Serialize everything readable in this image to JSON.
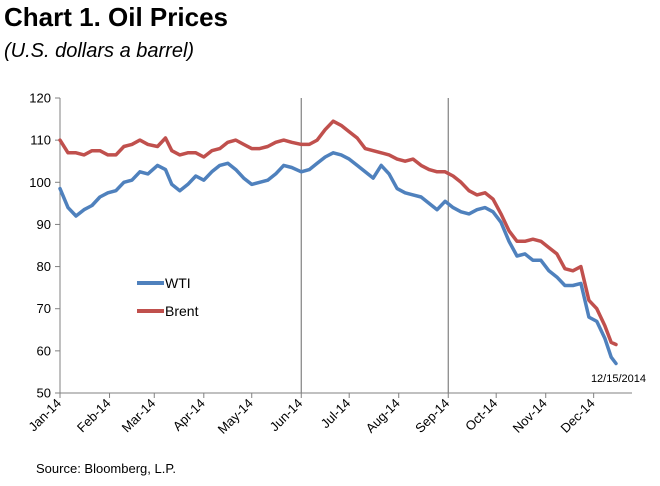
{
  "chart_data": {
    "type": "line",
    "title": "Chart 1. Oil Prices",
    "subtitle": "(U.S. dollars a barrel)",
    "source": "Source: Bloomberg, L.P.",
    "annotation": "12/15/2014",
    "ylim": [
      50,
      120
    ],
    "yticks": [
      50,
      60,
      70,
      80,
      90,
      100,
      110,
      120
    ],
    "xlim": [
      "2014-01-01",
      "2014-12-25"
    ],
    "xticks": [
      {
        "date": "2014-01-01",
        "label": "Jan-14"
      },
      {
        "date": "2014-02-01",
        "label": "Feb-14"
      },
      {
        "date": "2014-03-01",
        "label": "Mar-14"
      },
      {
        "date": "2014-04-01",
        "label": "Apr-14"
      },
      {
        "date": "2014-05-01",
        "label": "May-14"
      },
      {
        "date": "2014-06-01",
        "label": "Jun-14"
      },
      {
        "date": "2014-07-01",
        "label": "Jul-14"
      },
      {
        "date": "2014-08-01",
        "label": "Aug-14"
      },
      {
        "date": "2014-09-01",
        "label": "Sep-14"
      },
      {
        "date": "2014-10-01",
        "label": "Oct-14"
      },
      {
        "date": "2014-11-01",
        "label": "Nov-14"
      },
      {
        "date": "2014-12-01",
        "label": "Dec-14"
      }
    ],
    "reference_lines": [
      "2014-06-01",
      "2014-09-01"
    ],
    "grid": false,
    "legend_position": "left-center",
    "series": [
      {
        "name": "WTI",
        "color": "#4F81BD",
        "points": [
          [
            "2014-01-01",
            98.5
          ],
          [
            "2014-01-06",
            94
          ],
          [
            "2014-01-11",
            92
          ],
          [
            "2014-01-16",
            93.5
          ],
          [
            "2014-01-21",
            94.5
          ],
          [
            "2014-01-26",
            96.5
          ],
          [
            "2014-01-31",
            97.5
          ],
          [
            "2014-02-05",
            98
          ],
          [
            "2014-02-10",
            100
          ],
          [
            "2014-02-15",
            100.5
          ],
          [
            "2014-02-20",
            102.5
          ],
          [
            "2014-02-25",
            102
          ],
          [
            "2014-03-03",
            104
          ],
          [
            "2014-03-08",
            103
          ],
          [
            "2014-03-12",
            99.5
          ],
          [
            "2014-03-17",
            98
          ],
          [
            "2014-03-22",
            99.5
          ],
          [
            "2014-03-27",
            101.5
          ],
          [
            "2014-04-01",
            100.5
          ],
          [
            "2014-04-06",
            102.5
          ],
          [
            "2014-04-11",
            104
          ],
          [
            "2014-04-16",
            104.5
          ],
          [
            "2014-04-21",
            103
          ],
          [
            "2014-04-26",
            101
          ],
          [
            "2014-05-01",
            99.5
          ],
          [
            "2014-05-06",
            100
          ],
          [
            "2014-05-11",
            100.5
          ],
          [
            "2014-05-16",
            102
          ],
          [
            "2014-05-21",
            104
          ],
          [
            "2014-05-26",
            103.5
          ],
          [
            "2014-06-01",
            102.5
          ],
          [
            "2014-06-06",
            103
          ],
          [
            "2014-06-11",
            104.5
          ],
          [
            "2014-06-16",
            106
          ],
          [
            "2014-06-21",
            107
          ],
          [
            "2014-06-26",
            106.5
          ],
          [
            "2014-07-01",
            105.5
          ],
          [
            "2014-07-06",
            104
          ],
          [
            "2014-07-11",
            102.5
          ],
          [
            "2014-07-16",
            101
          ],
          [
            "2014-07-21",
            104
          ],
          [
            "2014-07-26",
            102
          ],
          [
            "2014-07-31",
            98.5
          ],
          [
            "2014-08-05",
            97.5
          ],
          [
            "2014-08-10",
            97
          ],
          [
            "2014-08-15",
            96.5
          ],
          [
            "2014-08-20",
            95
          ],
          [
            "2014-08-25",
            93.5
          ],
          [
            "2014-08-30",
            95.5
          ],
          [
            "2014-09-04",
            94
          ],
          [
            "2014-09-09",
            93
          ],
          [
            "2014-09-14",
            92.5
          ],
          [
            "2014-09-19",
            93.5
          ],
          [
            "2014-09-24",
            94
          ],
          [
            "2014-09-29",
            93
          ],
          [
            "2014-10-04",
            90.5
          ],
          [
            "2014-10-09",
            86
          ],
          [
            "2014-10-14",
            82.5
          ],
          [
            "2014-10-19",
            83
          ],
          [
            "2014-10-24",
            81.5
          ],
          [
            "2014-10-29",
            81.5
          ],
          [
            "2014-11-03",
            79
          ],
          [
            "2014-11-08",
            77.5
          ],
          [
            "2014-11-13",
            75.5
          ],
          [
            "2014-11-18",
            75.5
          ],
          [
            "2014-11-23",
            76
          ],
          [
            "2014-11-28",
            68
          ],
          [
            "2014-12-03",
            67
          ],
          [
            "2014-12-08",
            63
          ],
          [
            "2014-12-12",
            58.5
          ],
          [
            "2014-12-15",
            57
          ]
        ]
      },
      {
        "name": "Brent",
        "color": "#C0504D",
        "points": [
          [
            "2014-01-01",
            110
          ],
          [
            "2014-01-06",
            107
          ],
          [
            "2014-01-11",
            107
          ],
          [
            "2014-01-16",
            106.5
          ],
          [
            "2014-01-21",
            107.5
          ],
          [
            "2014-01-26",
            107.5
          ],
          [
            "2014-01-31",
            106.5
          ],
          [
            "2014-02-05",
            106.5
          ],
          [
            "2014-02-10",
            108.5
          ],
          [
            "2014-02-15",
            109
          ],
          [
            "2014-02-20",
            110
          ],
          [
            "2014-02-25",
            109
          ],
          [
            "2014-03-03",
            108.5
          ],
          [
            "2014-03-08",
            110.5
          ],
          [
            "2014-03-12",
            107.5
          ],
          [
            "2014-03-17",
            106.5
          ],
          [
            "2014-03-22",
            107
          ],
          [
            "2014-03-27",
            107
          ],
          [
            "2014-04-01",
            106
          ],
          [
            "2014-04-06",
            107.5
          ],
          [
            "2014-04-11",
            108
          ],
          [
            "2014-04-16",
            109.5
          ],
          [
            "2014-04-21",
            110
          ],
          [
            "2014-04-26",
            109
          ],
          [
            "2014-05-01",
            108
          ],
          [
            "2014-05-06",
            108
          ],
          [
            "2014-05-11",
            108.5
          ],
          [
            "2014-05-16",
            109.5
          ],
          [
            "2014-05-21",
            110
          ],
          [
            "2014-05-26",
            109.5
          ],
          [
            "2014-06-01",
            109
          ],
          [
            "2014-06-06",
            109
          ],
          [
            "2014-06-11",
            110
          ],
          [
            "2014-06-16",
            112.5
          ],
          [
            "2014-06-21",
            114.5
          ],
          [
            "2014-06-26",
            113.5
          ],
          [
            "2014-07-01",
            112
          ],
          [
            "2014-07-06",
            110.5
          ],
          [
            "2014-07-11",
            108
          ],
          [
            "2014-07-16",
            107.5
          ],
          [
            "2014-07-21",
            107
          ],
          [
            "2014-07-26",
            106.5
          ],
          [
            "2014-07-31",
            105.5
          ],
          [
            "2014-08-05",
            105
          ],
          [
            "2014-08-10",
            105.5
          ],
          [
            "2014-08-15",
            104
          ],
          [
            "2014-08-20",
            103
          ],
          [
            "2014-08-25",
            102.5
          ],
          [
            "2014-08-30",
            102.5
          ],
          [
            "2014-09-04",
            101.5
          ],
          [
            "2014-09-09",
            100
          ],
          [
            "2014-09-14",
            98
          ],
          [
            "2014-09-19",
            97
          ],
          [
            "2014-09-24",
            97.5
          ],
          [
            "2014-09-29",
            96
          ],
          [
            "2014-10-04",
            92.5
          ],
          [
            "2014-10-09",
            88.5
          ],
          [
            "2014-10-14",
            86
          ],
          [
            "2014-10-19",
            86
          ],
          [
            "2014-10-24",
            86.5
          ],
          [
            "2014-10-29",
            86
          ],
          [
            "2014-11-03",
            84.5
          ],
          [
            "2014-11-08",
            83
          ],
          [
            "2014-11-13",
            79.5
          ],
          [
            "2014-11-18",
            79
          ],
          [
            "2014-11-23",
            80
          ],
          [
            "2014-11-28",
            72
          ],
          [
            "2014-12-03",
            70
          ],
          [
            "2014-12-08",
            66
          ],
          [
            "2014-12-12",
            62
          ],
          [
            "2014-12-15",
            61.5
          ]
        ]
      }
    ]
  }
}
